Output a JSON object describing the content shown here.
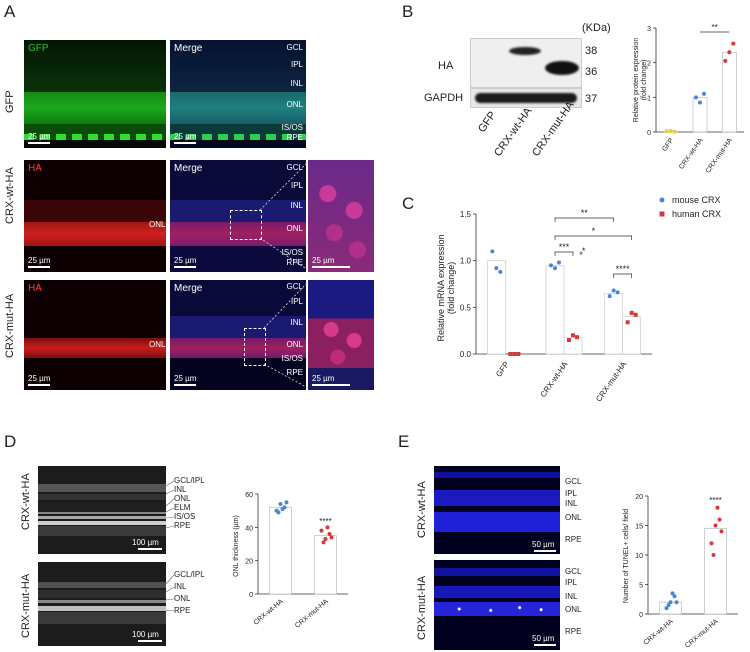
{
  "letters": {
    "A": "A",
    "B": "B",
    "C": "C",
    "D": "D",
    "E": "E"
  },
  "panelA": {
    "rows": [
      "GFP",
      "CRX-wt-HA",
      "CRX-mut-HA"
    ],
    "channels": [
      "GFP",
      "HA",
      "HA"
    ],
    "merge": "Merge",
    "layers_full": [
      "GCL",
      "IPL",
      "INL",
      "ONL",
      "IS/OS",
      "RPE"
    ],
    "layers_onl": "ONL",
    "scalebar": "25 µm"
  },
  "panelB": {
    "kda": "(KDa)",
    "ha": "HA",
    "gapdh": "GAPDH",
    "mw": [
      "38",
      "36",
      "37"
    ],
    "lanes": [
      "GFP",
      "CRX-wt-HA",
      "CRX-mut-HA"
    ]
  },
  "chart_data": [
    {
      "panel": "B",
      "type": "bar",
      "categories": [
        "GFP",
        "CRX-wt-HA",
        "CRX-mut-HA"
      ],
      "values": [
        0.02,
        1.0,
        2.3
      ],
      "points": [
        [
          0.02,
          0.03,
          0.01
        ],
        [
          1.0,
          0.85,
          1.1
        ],
        [
          2.05,
          2.3,
          2.55
        ]
      ],
      "ylabel": "Relative protein expression\n(fold change)",
      "ylim": [
        0,
        3
      ],
      "yticks": [
        "0",
        "1",
        "2",
        "3"
      ],
      "sig": "**",
      "colors": [
        "#e5d13a",
        "#4a86d8",
        "#d23b3b"
      ]
    },
    {
      "panel": "C",
      "type": "bar",
      "categories": [
        "GFP",
        "CRX-wt-HA",
        "CRX-mut-HA"
      ],
      "series": [
        {
          "name": "mouse CRX",
          "values": [
            1.0,
            0.95,
            0.65
          ],
          "points": [
            [
              1.1,
              0.92,
              0.88
            ],
            [
              0.95,
              0.92,
              0.98
            ],
            [
              0.62,
              0.68,
              0.66
            ]
          ],
          "color": "#4a86d8"
        },
        {
          "name": "human CRX",
          "values": [
            0.0,
            0.18,
            0.4
          ],
          "points": [
            [
              0,
              0,
              0
            ],
            [
              0.15,
              0.2,
              0.18
            ],
            [
              0.34,
              0.44,
              0.42
            ]
          ],
          "color": "#d23b3b"
        }
      ],
      "ylabel": "Relative mRNA expression\n(fold change)",
      "ylim": [
        0,
        1.5
      ],
      "yticks": [
        "0.0",
        "0.5",
        "1.0",
        "1.5"
      ],
      "sigs": [
        "**",
        "*",
        "***",
        "*",
        "*",
        "****"
      ]
    },
    {
      "panel": "D",
      "type": "bar",
      "categories": [
        "CRX-wt-HA",
        "CRX-mut-HA"
      ],
      "values": [
        52,
        35
      ],
      "points": [
        [
          50,
          54,
          52,
          49,
          51,
          55
        ],
        [
          38,
          33,
          36,
          31,
          40,
          34
        ]
      ],
      "ylabel": "ONL thickness (µm)",
      "ylim": [
        0,
        60
      ],
      "yticks": [
        "0",
        "20",
        "40",
        "60"
      ],
      "sig": "****",
      "colors": [
        "#4a86d8",
        "#d23b3b"
      ]
    },
    {
      "panel": "E",
      "type": "bar",
      "categories": [
        "CRX-wt-HA",
        "CRX-mut-HA"
      ],
      "values": [
        2,
        14.5
      ],
      "points": [
        [
          1,
          2,
          3,
          1.5,
          3.5,
          2
        ],
        [
          12,
          15,
          16,
          10,
          18,
          14
        ]
      ],
      "ylabel": "Number of TUNEL+ cells/ field",
      "ylim": [
        0,
        20
      ],
      "yticks": [
        "0",
        "5",
        "10",
        "15",
        "20"
      ],
      "sig": "****",
      "colors": [
        "#4a86d8",
        "#d23b3b"
      ]
    }
  ],
  "panelD": {
    "rows": [
      "CRX-wt-HA",
      "CRX-mut-HA"
    ],
    "layers_wt": [
      "GCL/IPL",
      "INL",
      "ONL",
      "ELM",
      "IS/OS",
      "RPE"
    ],
    "layers_mut": [
      "GCL/IPL",
      "INL",
      "ONL",
      "RPE"
    ],
    "scalebar": "100 µm"
  },
  "panelE": {
    "rows": [
      "CRX-wt-HA",
      "CRX-mut-HA"
    ],
    "layers": [
      "GCL",
      "IPL",
      "INL",
      "ONL",
      "RPE"
    ],
    "scalebar": "50 µm"
  },
  "colors": {
    "gfp": "#22c322",
    "ha": "#ff3a3a",
    "dapi": "#2525c8"
  }
}
